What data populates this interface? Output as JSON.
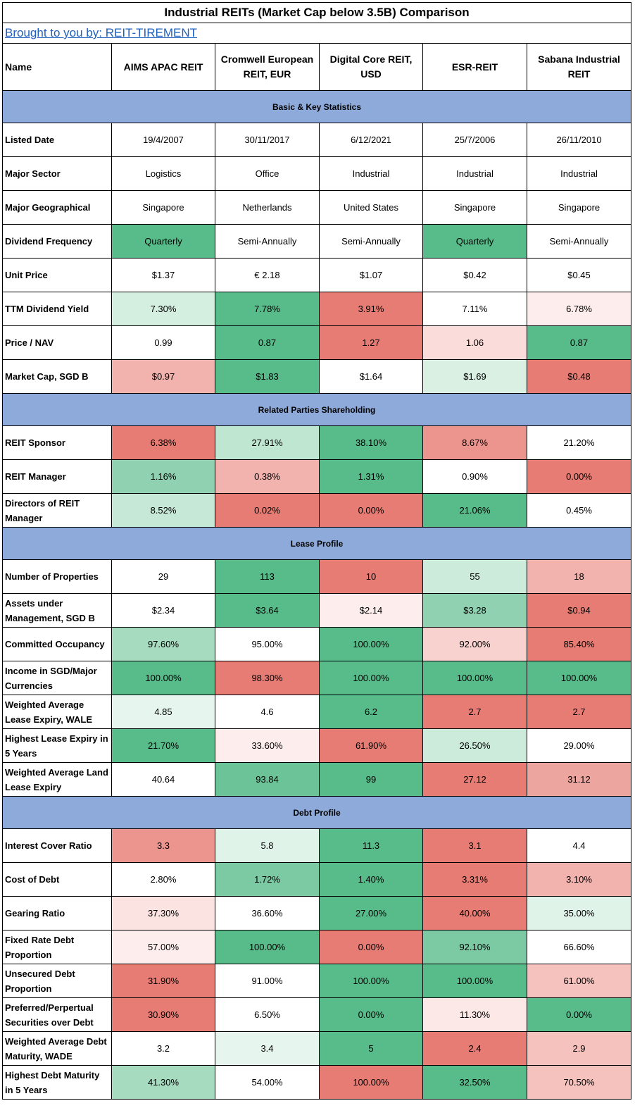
{
  "title": "Industrial REITs (Market Cap below 3.5B) Comparison",
  "credit": "Brought to you by: REIT-TIREMENT",
  "header": {
    "name_label": "Name",
    "reits": [
      "AIMS APAC REIT",
      "Cromwell European REIT, EUR",
      "Digital Core REIT, USD",
      "ESR-REIT",
      "Sabana Industrial REIT"
    ]
  },
  "colors": {
    "section": "#8eaadb",
    "white": "#ffffff",
    "green_strong": "#57bb8a",
    "green_mid": "#6cc398",
    "green_light": "#c6e8d6",
    "red_strong": "#e67c73",
    "red_light": "#f5d0cd"
  },
  "sections": [
    {
      "name": "Basic & Key Statistics",
      "rows": [
        {
          "label": "Listed Date",
          "values": [
            "19/4/2007",
            "30/11/2017",
            "6/12/2021",
            "25/7/2006",
            "26/11/2010"
          ],
          "colors": [
            "#ffffff",
            "#ffffff",
            "#ffffff",
            "#ffffff",
            "#ffffff"
          ]
        },
        {
          "label": "Major Sector",
          "values": [
            "Logistics",
            "Office",
            "Industrial",
            "Industrial",
            "Industrial"
          ],
          "colors": [
            "#ffffff",
            "#ffffff",
            "#ffffff",
            "#ffffff",
            "#ffffff"
          ]
        },
        {
          "label": "Major Geographical",
          "values": [
            "Singapore",
            "Netherlands",
            "United States",
            "Singapore",
            "Singapore"
          ],
          "colors": [
            "#ffffff",
            "#ffffff",
            "#ffffff",
            "#ffffff",
            "#ffffff"
          ]
        },
        {
          "label": "Dividend Frequency",
          "values": [
            "Quarterly",
            "Semi-Annually",
            "Semi-Annually",
            "Quarterly",
            "Semi-Annually"
          ],
          "colors": [
            "#57bb8a",
            "#ffffff",
            "#ffffff",
            "#57bb8a",
            "#ffffff"
          ]
        },
        {
          "label": "Unit Price",
          "values": [
            "$1.37",
            "€ 2.18",
            "$1.07",
            "$0.42",
            "$0.45"
          ],
          "colors": [
            "#ffffff",
            "#ffffff",
            "#ffffff",
            "#ffffff",
            "#ffffff"
          ]
        },
        {
          "label": "TTM Dividend Yield",
          "values": [
            "7.30%",
            "7.78%",
            "3.91%",
            "7.11%",
            "6.78%"
          ],
          "colors": [
            "#d4eee0",
            "#57bb8a",
            "#e67c73",
            "#ffffff",
            "#fdeeed"
          ]
        },
        {
          "label": "Price / NAV",
          "values": [
            "0.99",
            "0.87",
            "1.27",
            "1.06",
            "0.87"
          ],
          "colors": [
            "#ffffff",
            "#57bb8a",
            "#e67c73",
            "#fadcda",
            "#57bb8a"
          ]
        },
        {
          "label": "Market Cap, SGD B",
          "values": [
            "$0.97",
            "$1.83",
            "$1.64",
            "$1.69",
            "$0.48"
          ],
          "colors": [
            "#f2b2ad",
            "#57bb8a",
            "#ffffff",
            "#d9f0e3",
            "#e67c73"
          ]
        }
      ]
    },
    {
      "name": "Related Parties Shareholding",
      "rows": [
        {
          "label": "REIT Sponsor",
          "values": [
            "6.38%",
            "27.91%",
            "38.10%",
            "8.67%",
            "21.20%"
          ],
          "colors": [
            "#e67c73",
            "#bfe6d1",
            "#57bb8a",
            "#ec958e",
            "#ffffff"
          ]
        },
        {
          "label": "REIT Manager",
          "values": [
            "1.16%",
            "0.38%",
            "1.31%",
            "0.90%",
            "0.00%"
          ],
          "colors": [
            "#8fd1b1",
            "#f2b2ad",
            "#57bb8a",
            "#ffffff",
            "#e67c73"
          ]
        },
        {
          "label": "Directors of REIT Manager",
          "values": [
            "8.52%",
            "0.02%",
            "0.00%",
            "21.06%",
            "0.45%"
          ],
          "colors": [
            "#c6e8d6",
            "#e67c73",
            "#e67c73",
            "#57bb8a",
            "#ffffff"
          ]
        }
      ]
    },
    {
      "name": "Lease Profile",
      "rows": [
        {
          "label": "Number of Properties",
          "values": [
            "29",
            "113",
            "10",
            "55",
            "18"
          ],
          "colors": [
            "#ffffff",
            "#57bb8a",
            "#e67c73",
            "#cdebdb",
            "#f2b2ad"
          ]
        },
        {
          "label": "Assets under Management, SGD B",
          "values": [
            "$2.34",
            "$3.64",
            "$2.14",
            "$3.28",
            "$0.94"
          ],
          "colors": [
            "#ffffff",
            "#57bb8a",
            "#fdeeed",
            "#8fd1b1",
            "#e67c73"
          ]
        },
        {
          "label": "Committed Occupancy",
          "values": [
            "97.60%",
            "95.00%",
            "100.00%",
            "92.00%",
            "85.40%"
          ],
          "colors": [
            "#a6dbc0",
            "#ffffff",
            "#57bb8a",
            "#f8d2cf",
            "#e67c73"
          ]
        },
        {
          "label": "Income in SGD/Major Currencies",
          "values": [
            "100.00%",
            "98.30%",
            "100.00%",
            "100.00%",
            "100.00%"
          ],
          "colors": [
            "#57bb8a",
            "#e67c73",
            "#57bb8a",
            "#57bb8a",
            "#57bb8a"
          ]
        },
        {
          "label": "Weighted Average Lease Expiry, WALE",
          "values": [
            "4.85",
            "4.6",
            "6.2",
            "2.7",
            "2.7"
          ],
          "colors": [
            "#e6f5ed",
            "#ffffff",
            "#57bb8a",
            "#e67c73",
            "#e67c73"
          ]
        },
        {
          "label": "Highest Lease Expiry in 5 Years",
          "values": [
            "21.70%",
            "33.60%",
            "61.90%",
            "26.50%",
            "29.00%"
          ],
          "colors": [
            "#57bb8a",
            "#fdeeed",
            "#e67c73",
            "#cdebdb",
            "#ffffff"
          ]
        },
        {
          "label": "Weighted Average Land Lease Expiry",
          "values": [
            "40.64",
            "93.84",
            "99",
            "27.12",
            "31.12"
          ],
          "colors": [
            "#ffffff",
            "#6cc398",
            "#57bb8a",
            "#e67c73",
            "#eda59f"
          ]
        }
      ]
    },
    {
      "name": "Debt Profile",
      "rows": [
        {
          "label": "Interest Cover Ratio",
          "values": [
            "3.3",
            "5.8",
            "11.3",
            "3.1",
            "4.4"
          ],
          "colors": [
            "#ec958e",
            "#e0f3e9",
            "#57bb8a",
            "#e67c73",
            "#ffffff"
          ]
        },
        {
          "label": "Cost of Debt",
          "values": [
            "2.80%",
            "1.72%",
            "1.40%",
            "3.31%",
            "3.10%"
          ],
          "colors": [
            "#ffffff",
            "#7ccaa4",
            "#57bb8a",
            "#e67c73",
            "#f2b2ad"
          ]
        },
        {
          "label": "Gearing Ratio",
          "values": [
            "37.30%",
            "36.60%",
            "27.00%",
            "40.00%",
            "35.00%"
          ],
          "colors": [
            "#fae3e1",
            "#ffffff",
            "#57bb8a",
            "#e67c73",
            "#e0f3e9"
          ]
        },
        {
          "label": "Fixed Rate Debt Proportion",
          "values": [
            "57.00%",
            "100.00%",
            "0.00%",
            "92.10%",
            "66.60%"
          ],
          "colors": [
            "#fdeeed",
            "#57bb8a",
            "#e67c73",
            "#7ccaa4",
            "#ffffff"
          ]
        },
        {
          "label": "Unsecured Debt Proportion",
          "values": [
            "31.90%",
            "91.00%",
            "100.00%",
            "100.00%",
            "61.00%"
          ],
          "colors": [
            "#e67c73",
            "#ffffff",
            "#57bb8a",
            "#57bb8a",
            "#f5c2bd"
          ]
        },
        {
          "label": "Preferred/Perpertual Securities over Debt",
          "values": [
            "30.90%",
            "6.50%",
            "0.00%",
            "11.30%",
            "0.00%"
          ],
          "colors": [
            "#e67c73",
            "#ffffff",
            "#57bb8a",
            "#fce8e6",
            "#57bb8a"
          ]
        },
        {
          "label": "Weighted Average Debt Maturity, WADE",
          "values": [
            "3.2",
            "3.4",
            "5",
            "2.4",
            "2.9"
          ],
          "colors": [
            "#ffffff",
            "#e6f5ed",
            "#57bb8a",
            "#e67c73",
            "#f5c2bd"
          ]
        },
        {
          "label": "Highest Debt Maturity in 5 Years",
          "values": [
            "41.30%",
            "54.00%",
            "100.00%",
            "32.50%",
            "70.50%"
          ],
          "colors": [
            "#a6dbc0",
            "#ffffff",
            "#e67c73",
            "#57bb8a",
            "#f5c2bd"
          ]
        }
      ]
    }
  ]
}
